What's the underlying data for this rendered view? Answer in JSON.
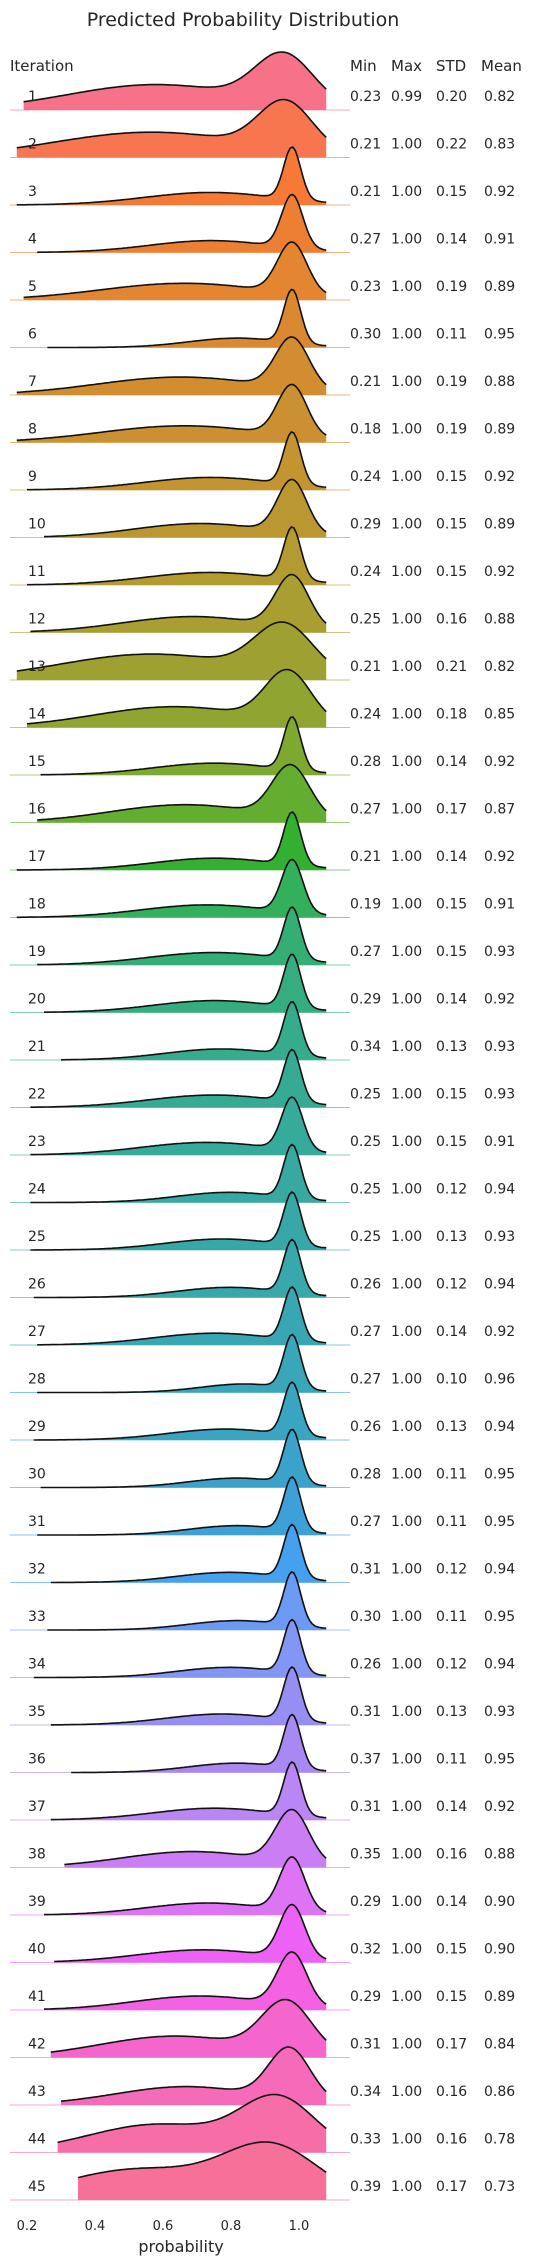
{
  "chart_data": {
    "type": "ridgeline",
    "title": "Predicted Probability Distribution",
    "xlabel": "probability",
    "x_ticks": [
      "0.2",
      "0.4",
      "0.6",
      "0.8",
      "1.0"
    ],
    "x_tick_values": [
      0.2,
      0.4,
      0.6,
      0.8,
      1.0
    ],
    "xlim": [
      0.15,
      1.15
    ],
    "headers": {
      "row": "Iteration",
      "min": "Min",
      "max": "Max",
      "std": "STD",
      "mean": "Mean"
    },
    "grid": false,
    "rows": [
      {
        "iteration": "1",
        "min": "0.23",
        "max": "0.99",
        "std": "0.20",
        "mean": "0.82",
        "color": "#f77189"
      },
      {
        "iteration": "2",
        "min": "0.21",
        "max": "1.00",
        "std": "0.22",
        "mean": "0.83",
        "color": "#f7754f"
      },
      {
        "iteration": "3",
        "min": "0.21",
        "max": "1.00",
        "std": "0.15",
        "mean": "0.92",
        "color": "#f67a35"
      },
      {
        "iteration": "4",
        "min": "0.27",
        "max": "1.00",
        "std": "0.14",
        "mean": "0.91",
        "color": "#ec7f32"
      },
      {
        "iteration": "5",
        "min": "0.23",
        "max": "1.00",
        "std": "0.19",
        "mean": "0.89",
        "color": "#e38531"
      },
      {
        "iteration": "6",
        "min": "0.30",
        "max": "1.00",
        "std": "0.11",
        "mean": "0.95",
        "color": "#da8931"
      },
      {
        "iteration": "7",
        "min": "0.21",
        "max": "1.00",
        "std": "0.19",
        "mean": "0.88",
        "color": "#d28d31"
      },
      {
        "iteration": "8",
        "min": "0.18",
        "max": "1.00",
        "std": "0.19",
        "mean": "0.89",
        "color": "#cb9031"
      },
      {
        "iteration": "9",
        "min": "0.24",
        "max": "1.00",
        "std": "0.15",
        "mean": "0.92",
        "color": "#c49431"
      },
      {
        "iteration": "10",
        "min": "0.29",
        "max": "1.00",
        "std": "0.15",
        "mean": "0.89",
        "color": "#bb9731"
      },
      {
        "iteration": "11",
        "min": "0.24",
        "max": "1.00",
        "std": "0.15",
        "mean": "0.92",
        "color": "#b39a31"
      },
      {
        "iteration": "12",
        "min": "0.25",
        "max": "1.00",
        "std": "0.16",
        "mean": "0.88",
        "color": "#a99e31"
      },
      {
        "iteration": "13",
        "min": "0.21",
        "max": "1.00",
        "std": "0.21",
        "mean": "0.82",
        "color": "#9ea131"
      },
      {
        "iteration": "14",
        "min": "0.24",
        "max": "1.00",
        "std": "0.18",
        "mean": "0.85",
        "color": "#90a531"
      },
      {
        "iteration": "15",
        "min": "0.28",
        "max": "1.00",
        "std": "0.14",
        "mean": "0.92",
        "color": "#7ea931"
      },
      {
        "iteration": "16",
        "min": "0.27",
        "max": "1.00",
        "std": "0.17",
        "mean": "0.87",
        "color": "#63ae31"
      },
      {
        "iteration": "17",
        "min": "0.21",
        "max": "1.00",
        "std": "0.14",
        "mean": "0.92",
        "color": "#33b030"
      },
      {
        "iteration": "18",
        "min": "0.19",
        "max": "1.00",
        "std": "0.15",
        "mean": "0.91",
        "color": "#33b05c"
      },
      {
        "iteration": "19",
        "min": "0.27",
        "max": "1.00",
        "std": "0.15",
        "mean": "0.93",
        "color": "#34ae72"
      },
      {
        "iteration": "20",
        "min": "0.29",
        "max": "1.00",
        "std": "0.14",
        "mean": "0.92",
        "color": "#35ad81"
      },
      {
        "iteration": "21",
        "min": "0.34",
        "max": "1.00",
        "std": "0.13",
        "mean": "0.93",
        "color": "#35ac8b"
      },
      {
        "iteration": "22",
        "min": "0.25",
        "max": "1.00",
        "std": "0.15",
        "mean": "0.93",
        "color": "#36ab94"
      },
      {
        "iteration": "23",
        "min": "0.25",
        "max": "1.00",
        "std": "0.15",
        "mean": "0.91",
        "color": "#36aa9b"
      },
      {
        "iteration": "24",
        "min": "0.25",
        "max": "1.00",
        "std": "0.12",
        "mean": "0.94",
        "color": "#37a9a1"
      },
      {
        "iteration": "25",
        "min": "0.25",
        "max": "1.00",
        "std": "0.13",
        "mean": "0.93",
        "color": "#37a8a7"
      },
      {
        "iteration": "26",
        "min": "0.26",
        "max": "1.00",
        "std": "0.12",
        "mean": "0.94",
        "color": "#38a8ad"
      },
      {
        "iteration": "27",
        "min": "0.27",
        "max": "1.00",
        "std": "0.14",
        "mean": "0.92",
        "color": "#39a7b3"
      },
      {
        "iteration": "28",
        "min": "0.27",
        "max": "1.00",
        "std": "0.10",
        "mean": "0.96",
        "color": "#39a6b9"
      },
      {
        "iteration": "29",
        "min": "0.26",
        "max": "1.00",
        "std": "0.13",
        "mean": "0.94",
        "color": "#3aa5c1"
      },
      {
        "iteration": "30",
        "min": "0.28",
        "max": "1.00",
        "std": "0.11",
        "mean": "0.95",
        "color": "#3ba3cb"
      },
      {
        "iteration": "31",
        "min": "0.27",
        "max": "1.00",
        "std": "0.11",
        "mean": "0.95",
        "color": "#3da1d8"
      },
      {
        "iteration": "32",
        "min": "0.31",
        "max": "1.00",
        "std": "0.12",
        "mean": "0.94",
        "color": "#45a0ee"
      },
      {
        "iteration": "33",
        "min": "0.30",
        "max": "1.00",
        "std": "0.11",
        "mean": "0.95",
        "color": "#6b9af4"
      },
      {
        "iteration": "34",
        "min": "0.26",
        "max": "1.00",
        "std": "0.12",
        "mean": "0.94",
        "color": "#8396f4"
      },
      {
        "iteration": "35",
        "min": "0.31",
        "max": "1.00",
        "std": "0.13",
        "mean": "0.93",
        "color": "#978ef4"
      },
      {
        "iteration": "36",
        "min": "0.37",
        "max": "1.00",
        "std": "0.11",
        "mean": "0.95",
        "color": "#a889f4"
      },
      {
        "iteration": "37",
        "min": "0.31",
        "max": "1.00",
        "std": "0.14",
        "mean": "0.92",
        "color": "#ba85f4"
      },
      {
        "iteration": "38",
        "min": "0.35",
        "max": "1.00",
        "std": "0.16",
        "mean": "0.88",
        "color": "#cb7ef4"
      },
      {
        "iteration": "39",
        "min": "0.29",
        "max": "1.00",
        "std": "0.14",
        "mean": "0.90",
        "color": "#dc74f4"
      },
      {
        "iteration": "40",
        "min": "0.32",
        "max": "1.00",
        "std": "0.15",
        "mean": "0.90",
        "color": "#ed62f4"
      },
      {
        "iteration": "41",
        "min": "0.29",
        "max": "1.00",
        "std": "0.15",
        "mean": "0.89",
        "color": "#f461e2"
      },
      {
        "iteration": "42",
        "min": "0.31",
        "max": "1.00",
        "std": "0.17",
        "mean": "0.84",
        "color": "#f566cc"
      },
      {
        "iteration": "43",
        "min": "0.34",
        "max": "1.00",
        "std": "0.16",
        "mean": "0.86",
        "color": "#f56ab9"
      },
      {
        "iteration": "44",
        "min": "0.33",
        "max": "1.00",
        "std": "0.16",
        "mean": "0.78",
        "color": "#f66da7"
      },
      {
        "iteration": "45",
        "min": "0.39",
        "max": "1.00",
        "std": "0.17",
        "mean": "0.73",
        "color": "#f6709a"
      }
    ]
  }
}
